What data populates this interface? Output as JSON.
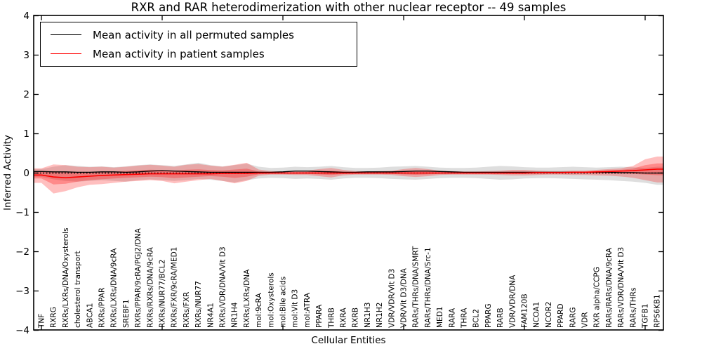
{
  "chart_data": {
    "type": "line",
    "title": "RXR and RAR heterodimerization with other nuclear receptor -- 49 samples",
    "xlabel": "Cellular Entities",
    "ylabel": "Inferred Activity",
    "ylim": [
      -4,
      4
    ],
    "grid": false,
    "legend_position": "upper left",
    "legend": [
      {
        "label": "Mean activity in all permuted samples",
        "color": "#000000"
      },
      {
        "label": "Mean activity in patient samples",
        "color": "#ff0000"
      }
    ],
    "colors": {
      "permuted_line": "#000000",
      "patient_line": "#ff0000",
      "permuted_band": "#000000",
      "patient_band": "#ff0000",
      "zero_line": "#000000"
    },
    "yticks": [
      {
        "value": 4,
        "label": "4"
      },
      {
        "value": 3,
        "label": "3"
      },
      {
        "value": 2,
        "label": "2"
      },
      {
        "value": 1,
        "label": "1"
      },
      {
        "value": 0,
        "label": "0"
      },
      {
        "value": -1,
        "label": "−1"
      },
      {
        "value": -2,
        "label": "−2"
      },
      {
        "value": -3,
        "label": "−3"
      },
      {
        "value": -4,
        "label": "−4"
      }
    ],
    "xtick_indices": [
      0,
      10,
      20,
      30,
      40,
      50
    ],
    "categories": [
      "TNF",
      "RXRG",
      "RXRs/LXRs/DNA/Oxysterols",
      "cholesterol transport",
      "ABCA1",
      "RXRs/PPAR",
      "RXRs/LXRs/DNA/9cRA",
      "SREBF1",
      "RXRs/PPAR/9cRA/PGJ2/DNA",
      "RXRs/RXRs/DNA/9cRA",
      "RXRs/NUR77/BCL2",
      "RXRs/FXR/9cRA/MED1",
      "RXRs/FXR",
      "RXRs/NUR77",
      "NR4A1",
      "RXRs/VDR/DNA/Vit D3",
      "NR1H4",
      "RXRs/LXRs/DNA",
      "mol:9cRA",
      "mol:Oxysterols",
      "mol:Bile acids",
      "mol:Vit D3",
      "mol:ATRA",
      "PPARA",
      "THRB",
      "RXRA",
      "RXRB",
      "NR1H3",
      "NR1H2",
      "VDR/VDR/Vit D3",
      "VDR/Vit D3/DNA",
      "RARs/THRs/DNA/SMRT",
      "RARs/THRs/DNA/Src-1",
      "MED1",
      "RARA",
      "THRA",
      "BCL2",
      "PPARG",
      "RARB",
      "VDR/VDR/DNA",
      "FAM120B",
      "NCOA1",
      "NCOR2",
      "PPARD",
      "RARG",
      "VDR",
      "RXR alpha/CCPG",
      "RARs/RARs/DNA/9cRA",
      "RARs/VDR/DNA/Vit D3",
      "RARs/THRs",
      "TGFB1",
      "RPS6KB1"
    ],
    "series": [
      {
        "name": "Mean activity in all permuted samples",
        "values": [
          0.04,
          0.03,
          0.03,
          0.02,
          0.02,
          0.03,
          0.03,
          0.02,
          0.03,
          0.05,
          0.06,
          0.05,
          0.04,
          0.03,
          0.02,
          0.02,
          0.02,
          0.02,
          0.02,
          0.02,
          0.03,
          0.05,
          0.05,
          0.04,
          0.03,
          0.02,
          0.02,
          0.03,
          0.03,
          0.03,
          0.04,
          0.05,
          0.05,
          0.04,
          0.03,
          0.02,
          0.02,
          0.02,
          0.02,
          0.02,
          0.02,
          0.02,
          0.02,
          0.02,
          0.02,
          0.02,
          0.02,
          0.02,
          0.01,
          0.01,
          0.0,
          0.0
        ]
      },
      {
        "name": "Mean activity in patient samples",
        "values": [
          -0.05,
          -0.1,
          -0.12,
          -0.1,
          -0.08,
          -0.06,
          -0.05,
          -0.04,
          -0.03,
          -0.02,
          -0.02,
          -0.02,
          -0.02,
          -0.02,
          -0.02,
          -0.01,
          -0.01,
          -0.01,
          0.0,
          0.0,
          0.0,
          0.0,
          0.0,
          0.0,
          0.0,
          0.0,
          0.0,
          0.0,
          0.0,
          0.0,
          0.0,
          0.0,
          0.0,
          0.0,
          0.0,
          0.0,
          0.0,
          0.0,
          0.0,
          0.0,
          0.0,
          0.01,
          0.01,
          0.01,
          0.02,
          0.02,
          0.03,
          0.04,
          0.05,
          0.06,
          0.08,
          0.1
        ]
      }
    ],
    "bands": {
      "permuted_hi": [
        0.1,
        0.16,
        0.2,
        0.18,
        0.16,
        0.17,
        0.15,
        0.17,
        0.2,
        0.22,
        0.2,
        0.18,
        0.22,
        0.26,
        0.2,
        0.17,
        0.2,
        0.24,
        0.16,
        0.13,
        0.14,
        0.16,
        0.15,
        0.16,
        0.18,
        0.15,
        0.13,
        0.13,
        0.14,
        0.16,
        0.17,
        0.18,
        0.16,
        0.14,
        0.13,
        0.13,
        0.14,
        0.16,
        0.18,
        0.17,
        0.15,
        0.14,
        0.14,
        0.15,
        0.16,
        0.15,
        0.14,
        0.15,
        0.16,
        0.15,
        0.13,
        0.16
      ],
      "permuted_lo": [
        -0.1,
        -0.16,
        -0.2,
        -0.22,
        -0.2,
        -0.18,
        -0.2,
        -0.22,
        -0.18,
        -0.16,
        -0.18,
        -0.2,
        -0.18,
        -0.15,
        -0.17,
        -0.2,
        -0.24,
        -0.18,
        -0.14,
        -0.12,
        -0.13,
        -0.15,
        -0.14,
        -0.15,
        -0.17,
        -0.14,
        -0.12,
        -0.12,
        -0.13,
        -0.15,
        -0.16,
        -0.17,
        -0.15,
        -0.13,
        -0.12,
        -0.12,
        -0.13,
        -0.15,
        -0.17,
        -0.16,
        -0.14,
        -0.13,
        -0.13,
        -0.14,
        -0.15,
        -0.16,
        -0.17,
        -0.18,
        -0.2,
        -0.22,
        -0.25,
        -0.3
      ],
      "patient_hi": [
        0.12,
        0.22,
        0.2,
        0.16,
        0.15,
        0.16,
        0.14,
        0.16,
        0.19,
        0.21,
        0.19,
        0.16,
        0.21,
        0.23,
        0.19,
        0.16,
        0.21,
        0.26,
        0.09,
        0.05,
        0.04,
        0.05,
        0.06,
        0.1,
        0.13,
        0.08,
        0.05,
        0.04,
        0.05,
        0.06,
        0.1,
        0.13,
        0.1,
        0.06,
        0.05,
        0.04,
        0.04,
        0.05,
        0.06,
        0.08,
        0.08,
        0.06,
        0.05,
        0.05,
        0.06,
        0.06,
        0.08,
        0.1,
        0.12,
        0.18,
        0.35,
        0.42
      ],
      "patient_lo": [
        -0.25,
        -0.52,
        -0.46,
        -0.36,
        -0.3,
        -0.28,
        -0.25,
        -0.22,
        -0.2,
        -0.18,
        -0.2,
        -0.26,
        -0.22,
        -0.18,
        -0.15,
        -0.2,
        -0.26,
        -0.2,
        -0.07,
        -0.04,
        -0.04,
        -0.05,
        -0.05,
        -0.08,
        -0.11,
        -0.06,
        -0.04,
        -0.04,
        -0.04,
        -0.05,
        -0.08,
        -0.1,
        -0.08,
        -0.05,
        -0.04,
        -0.04,
        -0.04,
        -0.04,
        -0.05,
        -0.06,
        -0.06,
        -0.05,
        -0.04,
        -0.04,
        -0.05,
        -0.05,
        -0.06,
        -0.07,
        -0.09,
        -0.12,
        -0.18,
        -0.24
      ]
    }
  }
}
